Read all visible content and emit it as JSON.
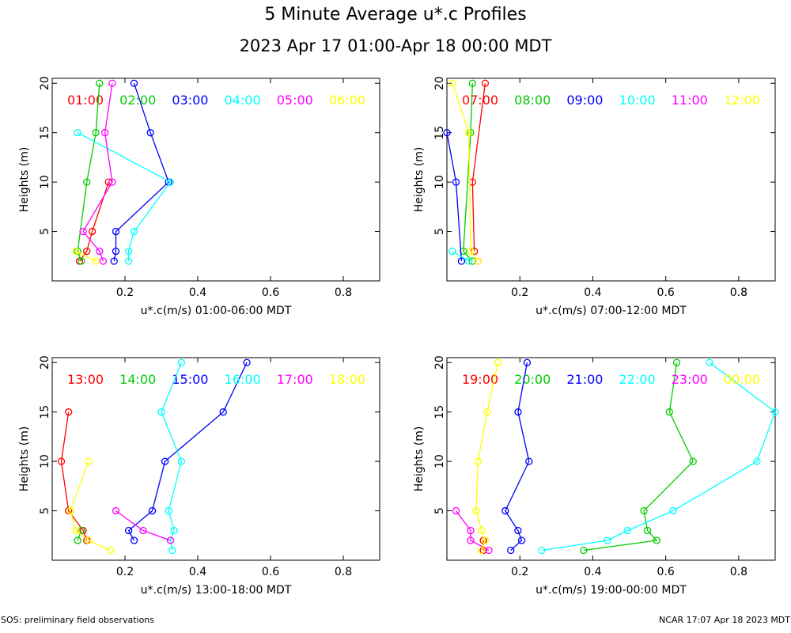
{
  "title": "5 Minute Average u*.c Profiles",
  "subtitle": "2023 Apr 17 01:00-Apr 18 00:00 MDT",
  "footer_left": "SOS: preliminary field observations",
  "footer_right": "NCAR 17:07 Apr 18 2023 MDT",
  "colors": [
    "#ff0000",
    "#00cc00",
    "#0000ff",
    "#00ffff",
    "#ff00ff",
    "#ffff00"
  ],
  "chart_data": [
    {
      "type": "line",
      "xlabel": "u*.c(m/s) 01:00-06:00 MDT",
      "ylabel": "Heights (m)",
      "xlim": [
        0.0,
        0.9
      ],
      "ylim": [
        0,
        20.5
      ],
      "xticks": [
        "0.2",
        "0.4",
        "0.6",
        "0.8"
      ],
      "yticks": [
        "5",
        "10",
        "15",
        "20"
      ],
      "series": [
        {
          "name": "01:00",
          "points": [
            [
              0.075,
              2
            ],
            [
              0.095,
              3
            ],
            [
              0.11,
              5
            ],
            [
              0.155,
              10
            ]
          ]
        },
        {
          "name": "02:00",
          "points": [
            [
              0.08,
              2
            ],
            [
              0.07,
              3
            ],
            [
              0.095,
              10
            ],
            [
              0.12,
              15
            ],
            [
              0.13,
              20
            ]
          ]
        },
        {
          "name": "03:00",
          "points": [
            [
              0.17,
              2
            ],
            [
              0.175,
              3
            ],
            [
              0.175,
              5
            ],
            [
              0.32,
              10
            ],
            [
              0.27,
              15
            ],
            [
              0.225,
              20
            ]
          ]
        },
        {
          "name": "04:00",
          "points": [
            [
              0.21,
              2
            ],
            [
              0.21,
              3
            ],
            [
              0.225,
              5
            ],
            [
              0.325,
              10
            ],
            [
              0.07,
              15
            ]
          ]
        },
        {
          "name": "05:00",
          "points": [
            [
              0.14,
              2
            ],
            [
              0.13,
              3
            ],
            [
              0.085,
              5
            ],
            [
              0.165,
              10
            ],
            [
              0.145,
              15
            ],
            [
              0.165,
              20
            ]
          ]
        },
        {
          "name": "06:00",
          "points": [
            [
              0.12,
              2
            ],
            [
              0.065,
              3
            ]
          ]
        }
      ]
    },
    {
      "type": "line",
      "xlabel": "u*.c(m/s) 07:00-12:00 MDT",
      "ylabel": "Heights (m)",
      "xlim": [
        0.0,
        0.9
      ],
      "ylim": [
        0,
        20.5
      ],
      "xticks": [
        "0.2",
        "0.4",
        "0.6",
        "0.8"
      ],
      "yticks": [
        "5",
        "10",
        "15",
        "20"
      ],
      "series": [
        {
          "name": "07:00",
          "points": [
            [
              0.075,
              3
            ],
            [
              0.07,
              10
            ],
            [
              0.105,
              20
            ]
          ]
        },
        {
          "name": "08:00",
          "points": [
            [
              0.07,
              2
            ],
            [
              0.045,
              3
            ],
            [
              0.065,
              15
            ],
            [
              0.07,
              20
            ]
          ]
        },
        {
          "name": "09:00",
          "points": [
            [
              0.04,
              2
            ],
            [
              0.025,
              10
            ],
            [
              0.0,
              15
            ]
          ]
        },
        {
          "name": "10:00",
          "points": [
            [
              0.06,
              2
            ],
            [
              0.015,
              3
            ]
          ]
        },
        {
          "name": "11:00",
          "points": [
            [
              0.085,
              2
            ]
          ]
        },
        {
          "name": "12:00",
          "points": [
            [
              0.085,
              2
            ],
            [
              0.065,
              3
            ],
            [
              0.06,
              15
            ],
            [
              0.015,
              20
            ]
          ]
        }
      ]
    },
    {
      "type": "line",
      "xlabel": "u*.c(m/s) 13:00-18:00 MDT",
      "ylabel": "Heights (m)",
      "xlim": [
        0.0,
        0.9
      ],
      "ylim": [
        0,
        20.5
      ],
      "xticks": [
        "0.2",
        "0.4",
        "0.6",
        "0.8"
      ],
      "yticks": [
        "5",
        "10",
        "15",
        "20"
      ],
      "series": [
        {
          "name": "13:00",
          "points": [
            [
              0.095,
              2
            ],
            [
              0.085,
              3
            ],
            [
              0.045,
              5
            ],
            [
              0.025,
              10
            ],
            [
              0.045,
              15
            ]
          ]
        },
        {
          "name": "14:00",
          "points": [
            [
              0.07,
              2
            ],
            [
              0.08,
              3
            ]
          ]
        },
        {
          "name": "15:00",
          "points": [
            [
              0.225,
              2
            ],
            [
              0.21,
              3
            ],
            [
              0.275,
              5
            ],
            [
              0.31,
              10
            ],
            [
              0.47,
              15
            ],
            [
              0.535,
              20
            ]
          ]
        },
        {
          "name": "16:00",
          "points": [
            [
              0.33,
              1
            ],
            [
              0.325,
              2
            ],
            [
              0.335,
              3
            ],
            [
              0.32,
              5
            ],
            [
              0.355,
              10
            ],
            [
              0.3,
              15
            ],
            [
              0.355,
              20
            ]
          ]
        },
        {
          "name": "17:00",
          "points": [
            [
              0.325,
              2
            ],
            [
              0.25,
              3
            ],
            [
              0.175,
              5
            ]
          ]
        },
        {
          "name": "18:00",
          "points": [
            [
              0.16,
              1
            ],
            [
              0.1,
              2
            ],
            [
              0.065,
              3
            ],
            [
              0.05,
              5
            ],
            [
              0.1,
              10
            ]
          ]
        }
      ]
    },
    {
      "type": "line",
      "xlabel": "u*.c(m/s) 19:00-00:00 MDT",
      "ylabel": "Heights (m)",
      "xlim": [
        0.0,
        0.9
      ],
      "ylim": [
        0,
        20.5
      ],
      "xticks": [
        "0.2",
        "0.4",
        "0.6",
        "0.8"
      ],
      "yticks": [
        "5",
        "10",
        "15",
        "20"
      ],
      "series": [
        {
          "name": "19:00",
          "points": [
            [
              0.1,
              1
            ],
            [
              0.1,
              2
            ]
          ]
        },
        {
          "name": "20:00",
          "points": [
            [
              0.375,
              1
            ],
            [
              0.575,
              2
            ],
            [
              0.55,
              3
            ],
            [
              0.54,
              5
            ],
            [
              0.675,
              10
            ],
            [
              0.61,
              15
            ],
            [
              0.63,
              20
            ]
          ]
        },
        {
          "name": "21:00",
          "points": [
            [
              0.175,
              1
            ],
            [
              0.205,
              2
            ],
            [
              0.195,
              3
            ],
            [
              0.16,
              5
            ],
            [
              0.225,
              10
            ],
            [
              0.195,
              15
            ],
            [
              0.22,
              20
            ]
          ]
        },
        {
          "name": "22:00",
          "points": [
            [
              0.26,
              1
            ],
            [
              0.44,
              2
            ],
            [
              0.495,
              3
            ],
            [
              0.62,
              5
            ],
            [
              0.85,
              10
            ],
            [
              0.9,
              15
            ],
            [
              0.72,
              20
            ]
          ]
        },
        {
          "name": "23:00",
          "points": [
            [
              0.115,
              1
            ],
            [
              0.065,
              2
            ],
            [
              0.065,
              3
            ],
            [
              0.025,
              5
            ]
          ]
        },
        {
          "name": "00:00",
          "points": [
            [
              0.095,
              1
            ],
            [
              0.105,
              2
            ],
            [
              0.095,
              3
            ],
            [
              0.08,
              5
            ],
            [
              0.085,
              10
            ],
            [
              0.11,
              15
            ],
            [
              0.14,
              20
            ]
          ]
        }
      ]
    }
  ]
}
